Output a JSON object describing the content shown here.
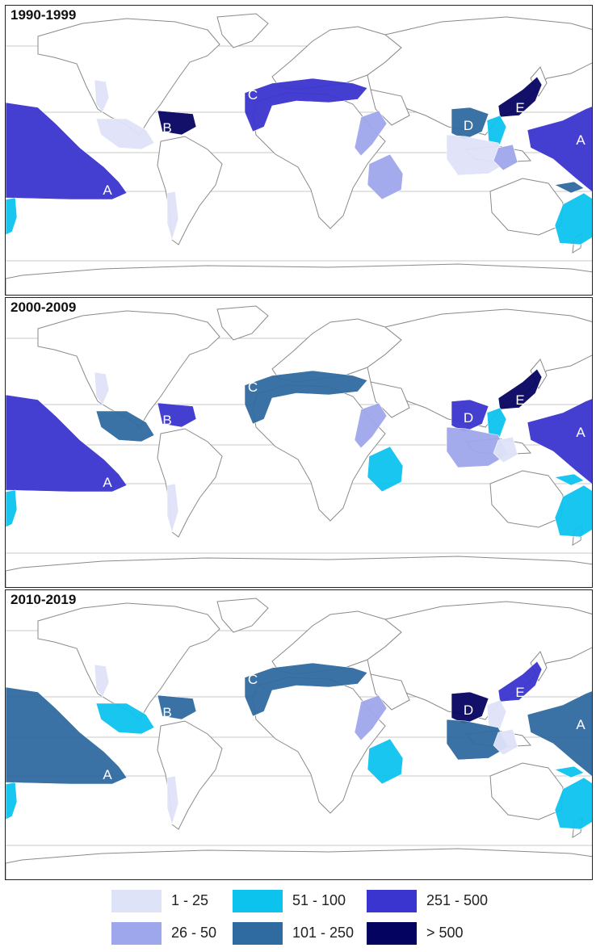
{
  "panels": [
    {
      "title": "1990-1999",
      "zones": [
        {
          "id": "A-east",
          "label": "A",
          "color": "#3a35cf"
        },
        {
          "id": "A-west",
          "label": "A",
          "color": "#3a35cf"
        },
        {
          "id": "B",
          "label": "B",
          "color": "#050360"
        },
        {
          "id": "C",
          "label": "C",
          "color": "#3a35cf"
        },
        {
          "id": "D",
          "label": "D",
          "color": "#2f6aa0"
        },
        {
          "id": "E",
          "label": "E",
          "color": "#050360"
        },
        {
          "id": "mexico-pacific",
          "label": "",
          "color": "#dfe3f8"
        },
        {
          "id": "us-west",
          "label": "",
          "color": "#dfe3f8"
        },
        {
          "id": "chile",
          "label": "",
          "color": "#dfe3f8"
        },
        {
          "id": "somalia",
          "label": "",
          "color": "#9fa7ec"
        },
        {
          "id": "madagascar",
          "label": "",
          "color": "#9fa7ec"
        },
        {
          "id": "scs",
          "label": "",
          "color": "#0cc3ee"
        },
        {
          "id": "indonesia",
          "label": "",
          "color": "#dfe3f8"
        },
        {
          "id": "philippines",
          "label": "",
          "color": "#9fa7ec"
        },
        {
          "id": "png",
          "label": "",
          "color": "#2f6aa0"
        },
        {
          "id": "aus-east",
          "label": "",
          "color": "#0cc3ee"
        },
        {
          "id": "pac-west",
          "label": "",
          "color": "#0cc3ee"
        }
      ]
    },
    {
      "title": "2000-2009",
      "zones": [
        {
          "id": "A-east",
          "label": "A",
          "color": "#3a35cf"
        },
        {
          "id": "A-west",
          "label": "A",
          "color": "#3a35cf"
        },
        {
          "id": "B",
          "label": "B",
          "color": "#3a35cf"
        },
        {
          "id": "C",
          "label": "C",
          "color": "#2f6aa0"
        },
        {
          "id": "D",
          "label": "D",
          "color": "#3a35cf"
        },
        {
          "id": "E",
          "label": "E",
          "color": "#050360"
        },
        {
          "id": "mexico-pacific",
          "label": "",
          "color": "#2f6aa0"
        },
        {
          "id": "us-west",
          "label": "",
          "color": "#dfe3f8"
        },
        {
          "id": "chile",
          "label": "",
          "color": "#dfe3f8"
        },
        {
          "id": "somalia",
          "label": "",
          "color": "#9fa7ec"
        },
        {
          "id": "madagascar",
          "label": "",
          "color": "#0cc3ee"
        },
        {
          "id": "scs",
          "label": "",
          "color": "#0cc3ee"
        },
        {
          "id": "indonesia",
          "label": "",
          "color": "#9fa7ec"
        },
        {
          "id": "philippines",
          "label": "",
          "color": "#dfe3f8"
        },
        {
          "id": "png",
          "label": "",
          "color": "#0cc3ee"
        },
        {
          "id": "aus-east",
          "label": "",
          "color": "#0cc3ee"
        },
        {
          "id": "pac-west",
          "label": "",
          "color": "#0cc3ee"
        }
      ]
    },
    {
      "title": "2010-2019",
      "zones": [
        {
          "id": "A-east",
          "label": "A",
          "color": "#2f6aa0"
        },
        {
          "id": "A-west",
          "label": "A",
          "color": "#2f6aa0"
        },
        {
          "id": "B",
          "label": "B",
          "color": "#2f6aa0"
        },
        {
          "id": "C",
          "label": "C",
          "color": "#2f6aa0"
        },
        {
          "id": "D",
          "label": "D",
          "color": "#050360"
        },
        {
          "id": "E",
          "label": "E",
          "color": "#3a35cf"
        },
        {
          "id": "mexico-pacific",
          "label": "",
          "color": "#0cc3ee"
        },
        {
          "id": "us-west",
          "label": "",
          "color": "#dfe3f8"
        },
        {
          "id": "chile",
          "label": "",
          "color": "#dfe3f8"
        },
        {
          "id": "somalia",
          "label": "",
          "color": "#9fa7ec"
        },
        {
          "id": "madagascar",
          "label": "",
          "color": "#0cc3ee"
        },
        {
          "id": "scs",
          "label": "",
          "color": "#dfe3f8"
        },
        {
          "id": "indonesia",
          "label": "",
          "color": "#2f6aa0"
        },
        {
          "id": "philippines",
          "label": "",
          "color": "#dfe3f8"
        },
        {
          "id": "png",
          "label": "",
          "color": "#0cc3ee"
        },
        {
          "id": "aus-east",
          "label": "",
          "color": "#0cc3ee"
        },
        {
          "id": "pac-west",
          "label": "",
          "color": "#0cc3ee"
        }
      ]
    }
  ],
  "legend": [
    {
      "label": "1 - 25",
      "color": "#dfe3f8"
    },
    {
      "label": "26 - 50",
      "color": "#9fa7ec"
    },
    {
      "label": "51 - 100",
      "color": "#0cc3ee"
    },
    {
      "label": "101 - 250",
      "color": "#2f6aa0"
    },
    {
      "label": "251 - 500",
      "color": "#3a35cf"
    },
    {
      "label": "> 500",
      "color": "#050360"
    }
  ]
}
